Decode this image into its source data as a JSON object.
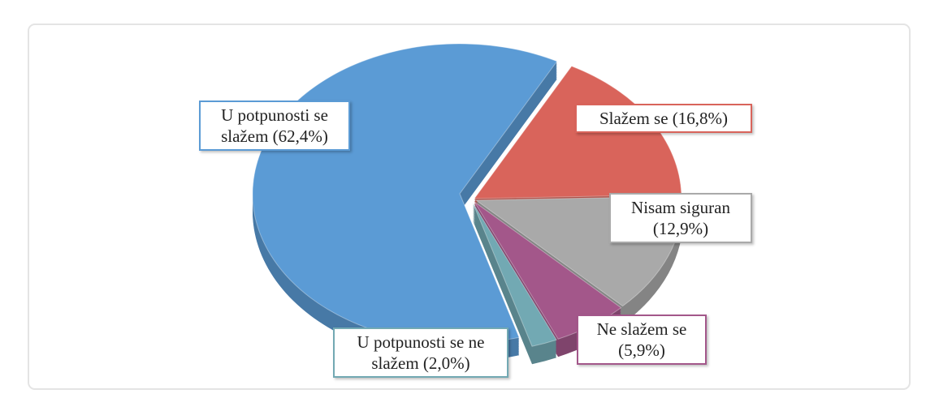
{
  "chart_data": {
    "type": "pie",
    "categories": [
      "Slažem se",
      "Nisam siguran",
      "Ne slažem se",
      "U potpunosti se ne slažem",
      "U potpunosti se slažem"
    ],
    "values": [
      16.8,
      12.9,
      5.9,
      2.0,
      62.4
    ],
    "value_labels": [
      "(16,8%)",
      "(12,9%)",
      "(5,9%)",
      "(2,0%)",
      "(62,4%)"
    ],
    "colors": [
      "#d9645b",
      "#a9a9a9",
      "#a3578a",
      "#72a9b3",
      "#5b9bd5"
    ]
  }
}
